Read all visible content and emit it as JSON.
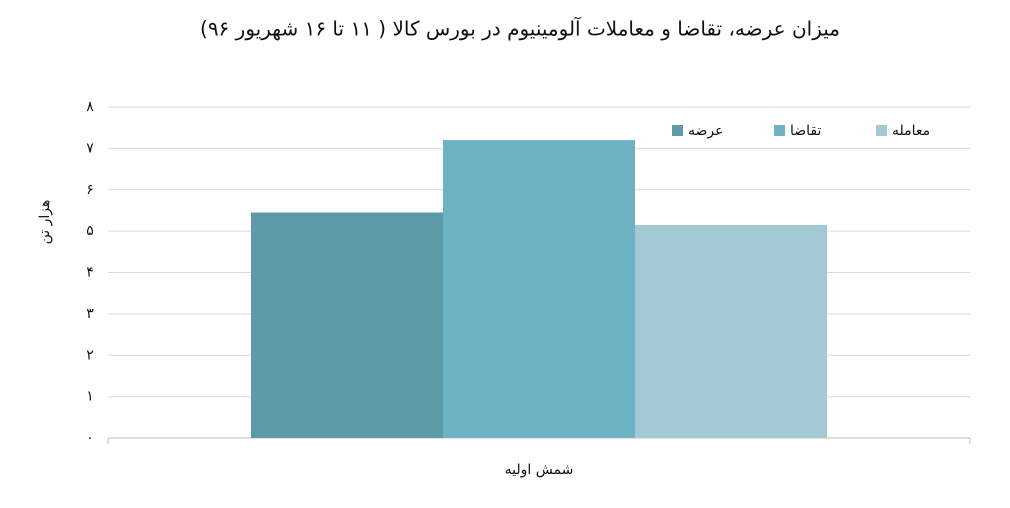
{
  "chart_data": {
    "type": "bar",
    "title": "میزان عرضه، تقاضا و معاملات آلومینیوم در بورس کالا ( ۱۱ تا ۱۶ شهریور ۹۶)",
    "y_label": "هزار تن",
    "categories": [
      "شمش اولیه"
    ],
    "series": [
      {
        "name": "عرضه",
        "color": "#5e9aa8",
        "values": [
          5.45
        ]
      },
      {
        "name": "تقاضا",
        "color": "#6db3c4",
        "values": [
          7.2
        ]
      },
      {
        "name": "معامله",
        "color": "#a3c9d4",
        "values": [
          5.15
        ]
      }
    ],
    "ylim": [
      0,
      8
    ],
    "yticks": [
      {
        "value": 0,
        "label": "۰"
      },
      {
        "value": 1,
        "label": "۱"
      },
      {
        "value": 2,
        "label": "۲"
      },
      {
        "value": 3,
        "label": "۳"
      },
      {
        "value": 4,
        "label": "۴"
      },
      {
        "value": 5,
        "label": "۵"
      },
      {
        "value": 6,
        "label": "۶"
      },
      {
        "value": 7,
        "label": "۷"
      },
      {
        "value": 8,
        "label": "۸"
      }
    ],
    "grid": true,
    "legend": "top-right"
  }
}
